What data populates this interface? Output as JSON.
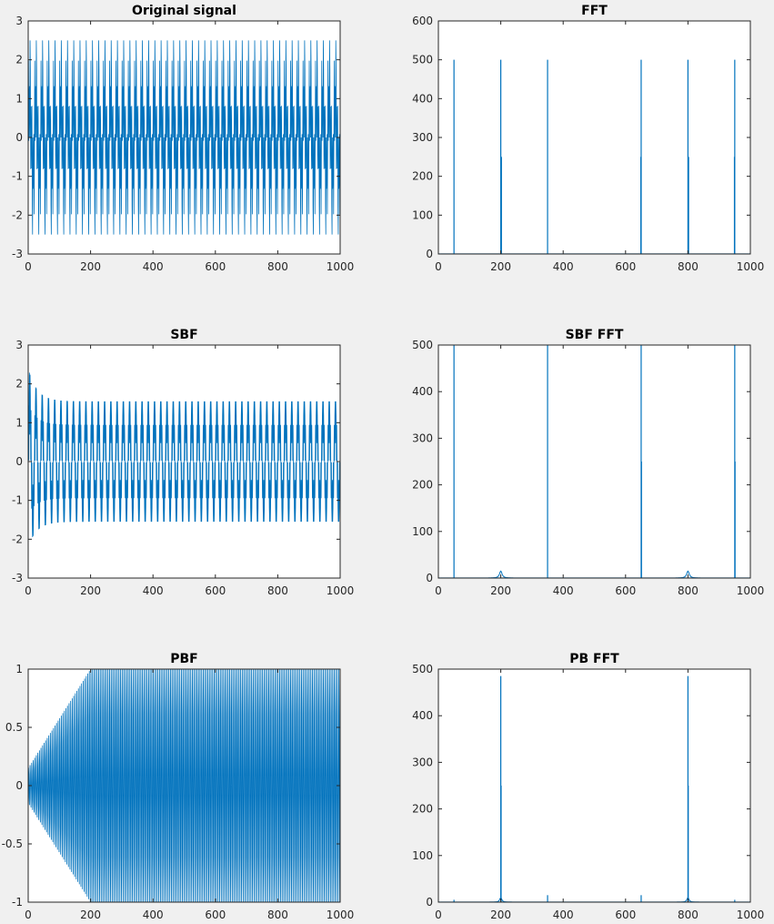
{
  "window": {
    "background": "#f0f0f0"
  },
  "style": {
    "line_color": "#0072bd",
    "axis_color": "#262626"
  },
  "chart_data": [
    {
      "id": "original-signal",
      "type": "line",
      "title": "Original signal",
      "xlabel": "",
      "ylabel": "",
      "xlim": [
        0,
        1000
      ],
      "ylim": [
        -3,
        3
      ],
      "xticks": [
        0,
        200,
        400,
        600,
        800,
        1000
      ],
      "yticks": [
        -3,
        -2,
        -1,
        0,
        1,
        2,
        3
      ],
      "grid": false,
      "signal": {
        "kind": "sum_of_sines",
        "n_samples": 1000,
        "components": [
          {
            "freq": 0.05,
            "amp": 1.0
          },
          {
            "freq": 0.2,
            "amp": 0.5
          },
          {
            "freq": 0.35,
            "amp": 1.0
          }
        ],
        "y_min": -2.5,
        "y_max": 2.5
      }
    },
    {
      "id": "fft",
      "type": "line",
      "title": "FFT",
      "xlabel": "",
      "ylabel": "",
      "xlim": [
        0,
        1000
      ],
      "ylim": [
        0,
        600
      ],
      "xticks": [
        0,
        200,
        400,
        600,
        800,
        1000
      ],
      "yticks": [
        0,
        100,
        200,
        300,
        400,
        500,
        600
      ],
      "grid": false,
      "peaks": [
        {
          "x": 50,
          "y": 500
        },
        {
          "x": 200,
          "y": 500
        },
        {
          "x": 202,
          "y": 250
        },
        {
          "x": 350,
          "y": 500
        },
        {
          "x": 650,
          "y": 500
        },
        {
          "x": 649,
          "y": 250
        },
        {
          "x": 800,
          "y": 500
        },
        {
          "x": 802,
          "y": 250
        },
        {
          "x": 950,
          "y": 500
        },
        {
          "x": 949,
          "y": 250
        }
      ],
      "baseline": 0
    },
    {
      "id": "sbf",
      "type": "line",
      "title": "SBF",
      "xlabel": "",
      "ylabel": "",
      "xlim": [
        0,
        1000
      ],
      "ylim": [
        -3,
        3
      ],
      "xticks": [
        0,
        200,
        400,
        600,
        800,
        1000
      ],
      "yticks": [
        -3,
        -2,
        -1,
        0,
        1,
        2,
        3
      ],
      "grid": false,
      "signal": {
        "kind": "sum_of_sines",
        "n_samples": 1000,
        "components": [
          {
            "freq": 0.05,
            "amp": 1.0
          },
          {
            "freq": 0.35,
            "amp": 0.6
          }
        ],
        "y_min": -1.55,
        "y_max": 1.55,
        "transient": {
          "peak_max": 2.4,
          "peak_min": -2.2,
          "decay_samples": 70
        }
      }
    },
    {
      "id": "sbf-fft",
      "type": "line",
      "title": "SBF FFT",
      "xlabel": "",
      "ylabel": "",
      "xlim": [
        0,
        1000
      ],
      "ylim": [
        0,
        500
      ],
      "xticks": [
        0,
        200,
        400,
        600,
        800,
        1000
      ],
      "yticks": [
        0,
        100,
        200,
        300,
        400,
        500
      ],
      "grid": false,
      "peaks": [
        {
          "x": 50,
          "y": 500
        },
        {
          "x": 350,
          "y": 500
        },
        {
          "x": 650,
          "y": 500
        },
        {
          "x": 651,
          "y": 250
        },
        {
          "x": 950,
          "y": 500
        },
        {
          "x": 951,
          "y": 250
        }
      ],
      "bumps": [
        {
          "x": 200,
          "height": 15,
          "width": 10
        },
        {
          "x": 800,
          "height": 15,
          "width": 10
        }
      ],
      "baseline": 0
    },
    {
      "id": "pbf",
      "type": "line",
      "title": "PBF",
      "xlabel": "",
      "ylabel": "",
      "xlim": [
        0,
        1000
      ],
      "ylim": [
        -1,
        1
      ],
      "xticks": [
        0,
        200,
        400,
        600,
        800,
        1000
      ],
      "yticks": [
        -1,
        -0.5,
        0,
        0.5,
        1
      ],
      "grid": false,
      "signal": {
        "kind": "sum_of_sines",
        "n_samples": 1000,
        "components": [
          {
            "freq": 0.2,
            "amp": 1.0
          }
        ],
        "y_min": -1.0,
        "y_max": 1.0,
        "ramp_samples": 200
      }
    },
    {
      "id": "pb-fft",
      "type": "line",
      "title": "PB FFT",
      "xlabel": "",
      "ylabel": "",
      "xlim": [
        0,
        1000
      ],
      "ylim": [
        0,
        500
      ],
      "xticks": [
        0,
        200,
        400,
        600,
        800,
        1000
      ],
      "yticks": [
        0,
        100,
        200,
        300,
        400,
        500
      ],
      "grid": false,
      "peaks": [
        {
          "x": 200,
          "y": 485
        },
        {
          "x": 201,
          "y": 250
        },
        {
          "x": 800,
          "y": 485
        },
        {
          "x": 801,
          "y": 250
        },
        {
          "x": 350,
          "y": 15
        },
        {
          "x": 650,
          "y": 15
        },
        {
          "x": 50,
          "y": 5
        },
        {
          "x": 950,
          "y": 5
        }
      ],
      "bumps": [
        {
          "x": 200,
          "height": 10,
          "width": 8
        },
        {
          "x": 800,
          "height": 10,
          "width": 8
        }
      ],
      "baseline": 0
    }
  ]
}
